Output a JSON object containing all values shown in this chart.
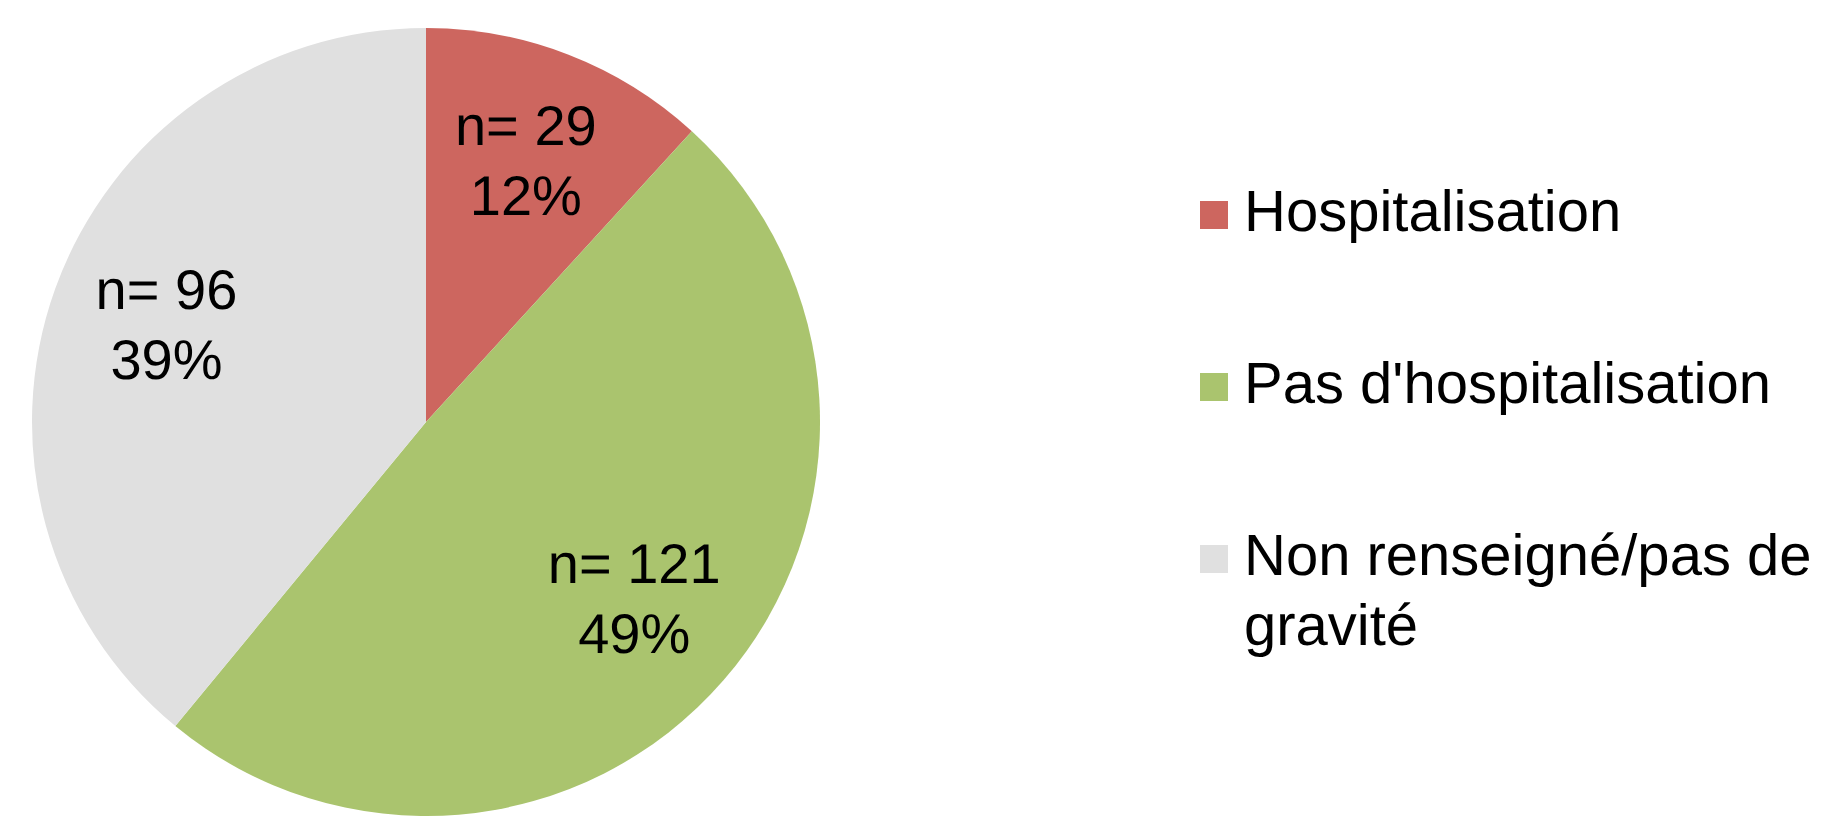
{
  "chart_data": {
    "type": "pie",
    "categories": [
      "Hospitalisation",
      "Pas d'hospitalisation",
      "Non renseigné/pas de gravité"
    ],
    "values": [
      29,
      121,
      96
    ],
    "colors": [
      "#cd665f",
      "#aac46e",
      "#e0e0e0"
    ],
    "value_labels": [
      "n= 29\n12%",
      "n= 121\n49%",
      "n= 96\n39%"
    ],
    "legend": "right"
  }
}
